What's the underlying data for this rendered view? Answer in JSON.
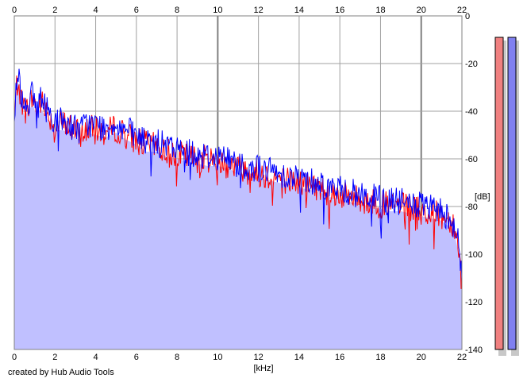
{
  "credit": "created by Hub Audio Tools",
  "chart_data": {
    "type": "area",
    "title": "",
    "xlabel": "[kHz]",
    "ylabel": "[dB]",
    "xlim": [
      0,
      22
    ],
    "ylim": [
      -140,
      0
    ],
    "x_ticks": [
      0,
      2,
      4,
      6,
      8,
      10,
      12,
      14,
      16,
      18,
      20,
      22
    ],
    "y_ticks": [
      0,
      -20,
      -40,
      -60,
      -80,
      -100,
      -120,
      -140
    ],
    "grid": true,
    "colors": {
      "plot_bg": "#ffffff",
      "fill": "#c0c0ff",
      "grid": "#a0a0a0",
      "major_grid": "#808080",
      "series_left": "#ff0000",
      "series_right": "#0000ff",
      "meter_left_fill": "#f08080",
      "meter_right_fill": "#8080f0"
    },
    "series": [
      {
        "color": "#ff0000",
        "x": [
          0.0,
          0.1,
          0.2,
          0.3,
          0.5,
          0.7,
          0.9,
          1.1,
          1.3,
          1.6,
          2.0,
          2.4,
          2.8,
          3.2,
          3.6,
          4.0,
          4.5,
          5.0,
          5.5,
          6.0,
          6.5,
          7.0,
          7.5,
          8.0,
          8.5,
          9.0,
          9.5,
          10.0,
          10.5,
          11.0,
          11.5,
          12.0,
          12.5,
          13.0,
          13.5,
          14.0,
          14.5,
          15.0,
          15.5,
          16.0,
          16.5,
          17.0,
          17.5,
          18.0,
          18.5,
          19.0,
          19.5,
          20.0,
          20.5,
          21.0,
          21.3,
          21.6,
          21.8,
          22.0
        ],
        "y": [
          -45,
          -30,
          -27,
          -33,
          -40,
          -38,
          -34,
          -40,
          -36,
          -40,
          -46,
          -45,
          -47,
          -50,
          -47,
          -48,
          -49,
          -47,
          -50,
          -52,
          -54,
          -55,
          -57,
          -58,
          -59,
          -60,
          -60,
          -61,
          -62,
          -63,
          -65,
          -66,
          -67,
          -68,
          -69,
          -70,
          -71,
          -72,
          -74,
          -75,
          -76,
          -77,
          -78,
          -79,
          -80,
          -80,
          -81,
          -82,
          -83,
          -84,
          -85,
          -87,
          -95,
          -112
        ]
      },
      {
        "color": "#0000ff",
        "x": [
          0.0,
          0.1,
          0.2,
          0.3,
          0.5,
          0.7,
          0.9,
          1.1,
          1.3,
          1.6,
          2.0,
          2.4,
          2.8,
          3.2,
          3.6,
          4.0,
          4.5,
          5.0,
          5.5,
          6.0,
          6.5,
          7.0,
          7.5,
          8.0,
          8.5,
          9.0,
          9.5,
          10.0,
          10.5,
          11.0,
          11.5,
          12.0,
          12.5,
          13.0,
          13.5,
          14.0,
          14.5,
          15.0,
          15.5,
          16.0,
          16.5,
          17.0,
          17.5,
          18.0,
          18.5,
          19.0,
          19.5,
          20.0,
          20.5,
          21.0,
          21.3,
          21.6,
          21.8,
          22.0
        ],
        "y": [
          -43,
          -28,
          -24,
          -31,
          -38,
          -36,
          -33,
          -38,
          -35,
          -39,
          -44,
          -44,
          -46,
          -48,
          -45,
          -46,
          -47,
          -45,
          -48,
          -50,
          -53,
          -53,
          -55,
          -56,
          -57,
          -58,
          -59,
          -59,
          -60,
          -62,
          -63,
          -64,
          -65,
          -66,
          -67,
          -68,
          -69,
          -70,
          -72,
          -73,
          -74,
          -75,
          -76,
          -77,
          -78,
          -78,
          -79,
          -80,
          -81,
          -82,
          -84,
          -86,
          -94,
          -110
        ]
      }
    ],
    "meters": {
      "left_db": -5,
      "right_db": -5
    }
  }
}
